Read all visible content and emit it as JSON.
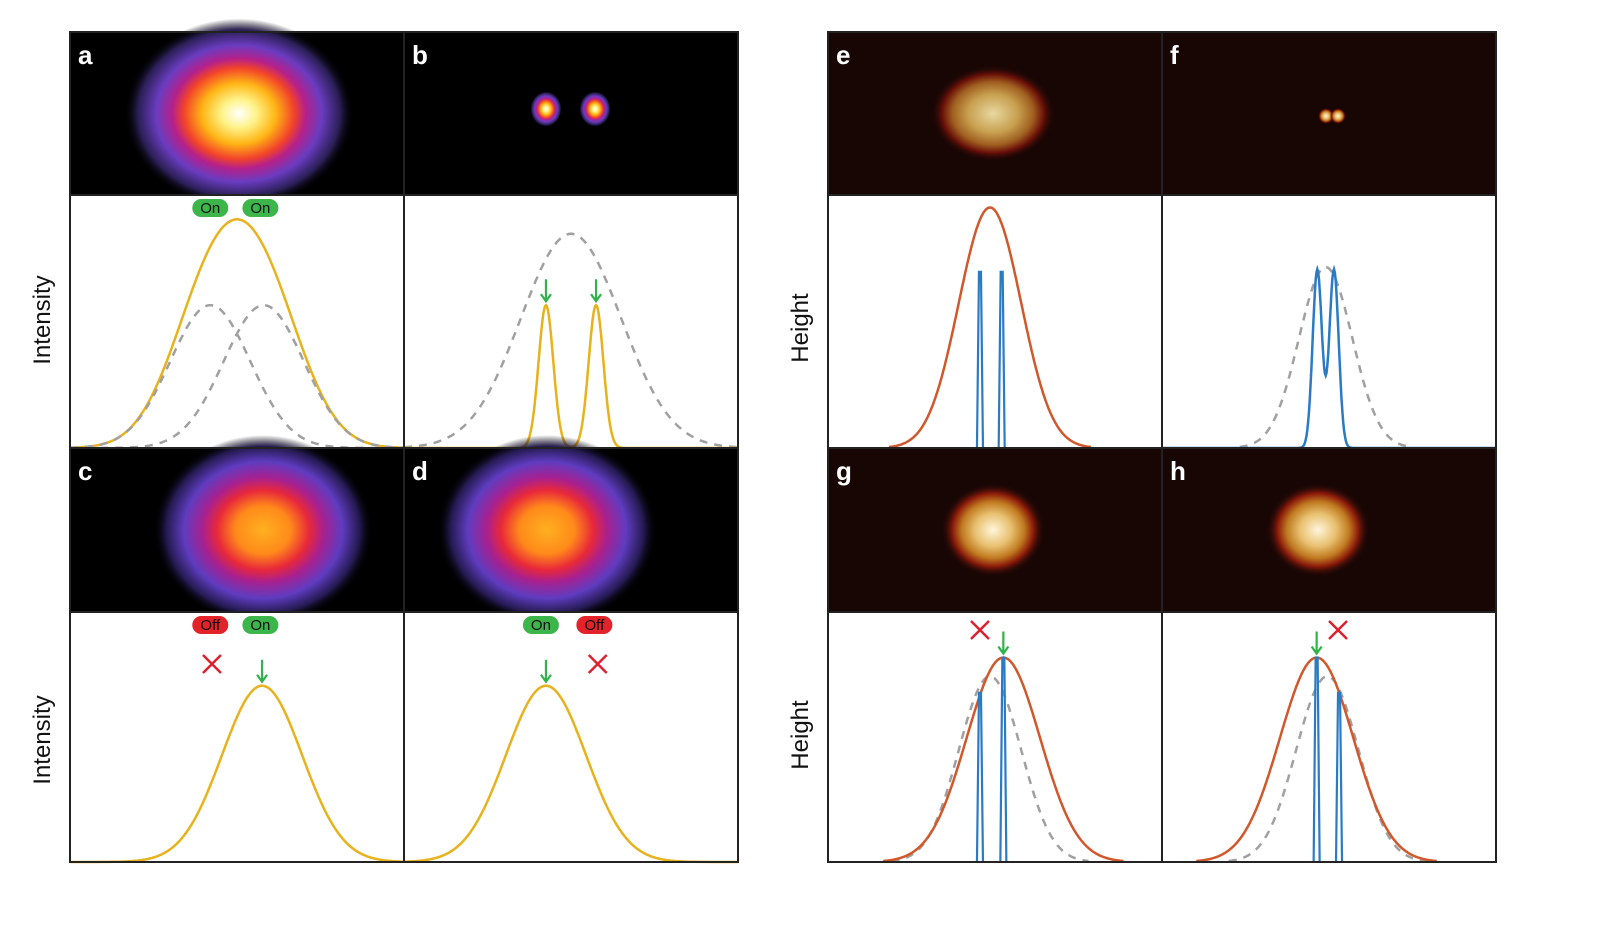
{
  "figure": {
    "axis_labels": {
      "intensity": "Intensity",
      "height": "Height"
    },
    "colors": {
      "yellow": "#e8b21c",
      "grey": "#a0a0a0",
      "orange": "#d2572a",
      "blue": "#2a7bc4",
      "green": "#2fb34a",
      "red": "#e0202e",
      "badge_on": "#3cb54a",
      "badge_off": "#e32229"
    }
  },
  "chart_data": [
    {
      "panel": "a",
      "type": "line",
      "ylabel": "Intensity",
      "image": "two-merged-spots",
      "series": [
        {
          "name": "sum",
          "style": "yellow",
          "gauss": [
            [
              0.42,
              0.12,
              0.6
            ],
            [
              0.58,
              0.12,
              0.6
            ]
          ]
        },
        {
          "name": "emitter-1",
          "style": "grey-dashed",
          "gauss": [
            [
              0.42,
              0.12,
              0.6
            ]
          ]
        },
        {
          "name": "emitter-2",
          "style": "grey-dashed",
          "gauss": [
            [
              0.58,
              0.12,
              0.6
            ]
          ]
        }
      ],
      "badges": [
        {
          "x": 0.42,
          "text": "On",
          "state": "on"
        },
        {
          "x": 0.57,
          "text": "On",
          "state": "on"
        }
      ],
      "arrows": [],
      "crosses": []
    },
    {
      "panel": "b",
      "type": "line",
      "ylabel": "",
      "image": "two-resolved-spots",
      "series": [
        {
          "name": "diffraction",
          "style": "grey-dashed",
          "gauss": [
            [
              0.5,
              0.15,
              0.9
            ]
          ]
        },
        {
          "name": "resolved",
          "style": "yellow",
          "gauss": [
            [
              0.425,
              0.022,
              0.6
            ],
            [
              0.575,
              0.022,
              0.6
            ]
          ]
        }
      ],
      "badges": [],
      "arrows": [
        {
          "x": 0.425,
          "y": 0.6
        },
        {
          "x": 0.575,
          "y": 0.6
        }
      ],
      "crosses": []
    },
    {
      "panel": "c",
      "type": "line",
      "ylabel": "Intensity",
      "image": "single-spot",
      "series": [
        {
          "name": "emitter-on",
          "style": "yellow",
          "gauss": [
            [
              0.575,
              0.12,
              0.75
            ]
          ]
        }
      ],
      "badges": [
        {
          "x": 0.42,
          "text": "Off",
          "state": "off"
        },
        {
          "x": 0.57,
          "text": "On",
          "state": "on"
        }
      ],
      "arrows": [
        {
          "x": 0.575,
          "y": 0.75
        }
      ],
      "crosses": [
        {
          "x": 0.425
        }
      ]
    },
    {
      "panel": "d",
      "type": "line",
      "ylabel": "",
      "image": "single-spot",
      "series": [
        {
          "name": "emitter-on",
          "style": "yellow",
          "gauss": [
            [
              0.425,
              0.12,
              0.75
            ]
          ]
        }
      ],
      "badges": [
        {
          "x": 0.41,
          "text": "On",
          "state": "on"
        },
        {
          "x": 0.57,
          "text": "Off",
          "state": "off"
        }
      ],
      "arrows": [
        {
          "x": 0.425,
          "y": 0.75
        }
      ],
      "crosses": [
        {
          "x": 0.58
        }
      ]
    },
    {
      "panel": "e",
      "type": "line",
      "ylabel": "Height",
      "image": "afm-blob",
      "series": [
        {
          "name": "tip-profile",
          "style": "orange",
          "gauss": [
            [
              0.45,
              0.085,
              0.55
            ],
            [
              0.52,
              0.085,
              0.55
            ]
          ]
        },
        {
          "name": "molecules",
          "style": "blue-spikes",
          "spikes": [
            [
              0.455,
              0.74
            ],
            [
              0.52,
              0.74
            ]
          ]
        }
      ],
      "badges": [],
      "arrows": [],
      "crosses": []
    },
    {
      "panel": "f",
      "type": "line",
      "ylabel": "",
      "image": "afm-two-dots",
      "series": [
        {
          "name": "envelope",
          "style": "grey-dashed",
          "gauss": [
            [
              0.49,
              0.08,
              0.76
            ]
          ]
        },
        {
          "name": "resolved",
          "style": "blue",
          "gauss": [
            [
              0.465,
              0.014,
              0.75
            ],
            [
              0.515,
              0.014,
              0.75
            ]
          ]
        }
      ],
      "badges": [],
      "arrows": [],
      "crosses": []
    },
    {
      "panel": "g",
      "type": "line",
      "ylabel": "Height",
      "image": "afm-blob",
      "series": [
        {
          "name": "envelope",
          "style": "grey-dashed",
          "gauss": [
            [
              0.45,
              0.085,
              0.43
            ],
            [
              0.52,
              0.085,
              0.43
            ]
          ]
        },
        {
          "name": "tip-profile",
          "style": "orange",
          "gauss": [
            [
              0.525,
              0.11,
              0.87
            ]
          ]
        },
        {
          "name": "molecules",
          "style": "blue-spikes",
          "spikes": [
            [
              0.455,
              0.72
            ],
            [
              0.525,
              0.87
            ]
          ]
        }
      ],
      "badges": [],
      "arrows": [
        {
          "x": 0.525,
          "y": 0.87
        }
      ],
      "crosses": [
        {
          "x": 0.455
        }
      ]
    },
    {
      "panel": "h",
      "type": "line",
      "ylabel": "",
      "image": "afm-blob",
      "series": [
        {
          "name": "envelope",
          "style": "grey-dashed",
          "gauss": [
            [
              0.46,
              0.085,
              0.43
            ],
            [
              0.53,
              0.085,
              0.43
            ]
          ]
        },
        {
          "name": "tip-profile",
          "style": "orange",
          "gauss": [
            [
              0.463,
              0.11,
              0.87
            ]
          ]
        },
        {
          "name": "molecules",
          "style": "blue-spikes",
          "spikes": [
            [
              0.463,
              0.87
            ],
            [
              0.53,
              0.72
            ]
          ]
        }
      ],
      "badges": [],
      "arrows": [
        {
          "x": 0.463,
          "y": 0.87
        }
      ],
      "crosses": [
        {
          "x": 0.527
        }
      ]
    }
  ]
}
